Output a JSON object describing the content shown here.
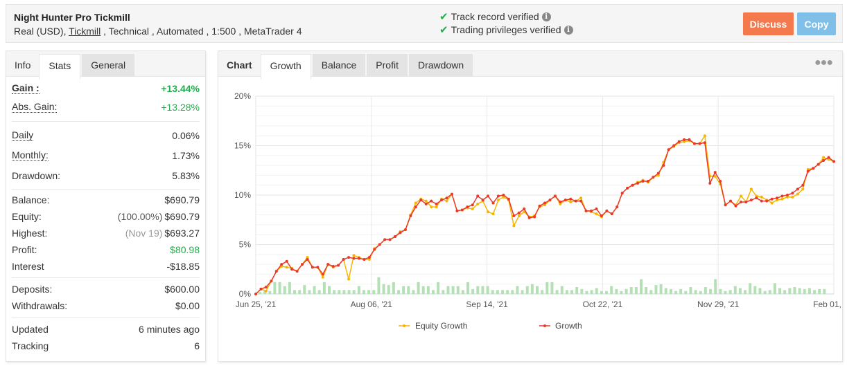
{
  "header": {
    "title": "Night Hunter Pro Tickmill",
    "account_type": "Real (USD), ",
    "broker_link": "Tickmill",
    "details": " , Technical , Automated , 1:500 , MetaTrader 4",
    "verifications": [
      {
        "label": "Track record verified",
        "icon": "check-icon"
      },
      {
        "label": "Trading privileges verified",
        "icon": "check-icon"
      }
    ],
    "discuss_label": "Discuss",
    "copy_label": "Copy",
    "colors": {
      "discuss": "#f47a4d",
      "copy": "#7fbfe8",
      "verified": "#1fae4b"
    }
  },
  "left_panel": {
    "tabs": [
      {
        "label": "Info",
        "state": "label"
      },
      {
        "label": "Stats",
        "state": "active"
      },
      {
        "label": "General",
        "state": "inactive"
      }
    ],
    "gain": {
      "label": "Gain :",
      "value": "+13.44%"
    },
    "abs_gain": {
      "label": "Abs. Gain:",
      "value": "+13.28%"
    },
    "daily": {
      "label": "Daily",
      "value": "0.06%"
    },
    "monthly": {
      "label": "Monthly:",
      "value": "1.73%"
    },
    "drawdown": {
      "label": "Drawdown:",
      "value": "5.83%"
    },
    "balance": {
      "label": "Balance:",
      "value": "$690.79"
    },
    "equity": {
      "label": "Equity:",
      "note": "(100.00%)",
      "value": "$690.79"
    },
    "highest": {
      "label": "Highest:",
      "note": "(Nov 19)",
      "value": "$693.27"
    },
    "profit": {
      "label": "Profit:",
      "value": "$80.98"
    },
    "interest": {
      "label": "Interest",
      "value": "-$18.85"
    },
    "deposits": {
      "label": "Deposits:",
      "value": "$600.00"
    },
    "withdrawals": {
      "label": "Withdrawals:",
      "value": "$0.00"
    },
    "updated": {
      "label": "Updated",
      "value": "6 minutes ago"
    },
    "tracking": {
      "label": "Tracking",
      "value": "6"
    }
  },
  "right_panel": {
    "tabs": [
      {
        "label": "Chart",
        "state": "label"
      },
      {
        "label": "Growth",
        "state": "active"
      },
      {
        "label": "Balance",
        "state": "inactive"
      },
      {
        "label": "Profit",
        "state": "inactive"
      },
      {
        "label": "Drawdown",
        "state": "inactive"
      }
    ],
    "more_icon": "ellipsis-icon"
  },
  "chart_data": {
    "type": "line",
    "title": "",
    "xlabel": "",
    "ylabel": "",
    "ylim": [
      0,
      20
    ],
    "yticks": [
      "0%",
      "5%",
      "10%",
      "15%",
      "20%"
    ],
    "xticks": [
      "Jun 25, '21",
      "Aug 06, '21",
      "Sep 14, '21",
      "Oct 22, '21",
      "Nov 29, '21",
      "Feb 01, '22"
    ],
    "grid": true,
    "legend_position": "bottom",
    "colors": {
      "equity": "#f7b500",
      "growth": "#e8392b",
      "bars": "#b5e0b5"
    },
    "series": [
      {
        "name": "Equity Growth",
        "values": [
          0.0,
          0.5,
          0.3,
          1.3,
          2.3,
          2.8,
          2.7,
          2.6,
          2.3,
          3.0,
          3.7,
          2.7,
          2.7,
          1.7,
          3.0,
          2.7,
          2.9,
          3.5,
          1.5,
          3.9,
          3.7,
          3.5,
          3.5,
          4.6,
          5.0,
          5.5,
          5.5,
          5.8,
          6.3,
          6.5,
          8.0,
          9.2,
          9.6,
          9.4,
          8.8,
          8.8,
          9.6,
          9.4,
          10.1,
          8.4,
          8.5,
          8.7,
          8.6,
          9.1,
          9.4,
          8.3,
          8.1,
          9.5,
          9.8,
          9.5,
          6.9,
          7.9,
          8.3,
          7.8,
          7.9,
          8.8,
          9.0,
          9.5,
          9.9,
          9.1,
          9.5,
          9.3,
          9.4,
          9.7,
          8.4,
          8.3,
          8.1,
          7.8,
          8.4,
          8.1,
          8.8,
          10.2,
          10.7,
          11.0,
          11.3,
          11.5,
          11.3,
          11.8,
          12.0,
          13.3,
          14.6,
          14.9,
          15.3,
          15.4,
          15.5,
          15.2,
          15.2,
          16.0,
          11.9,
          11.9,
          11.1,
          9.0,
          9.4,
          9.0,
          9.9,
          9.3,
          10.6,
          9.9,
          9.8,
          9.5,
          9.2,
          9.5,
          9.6,
          9.8,
          9.8,
          10.1,
          10.6,
          12.6,
          12.7,
          13.1,
          13.8,
          13.6,
          13.4
        ]
      },
      {
        "name": "Growth",
        "values": [
          0.0,
          0.5,
          0.7,
          1.3,
          2.3,
          3.0,
          3.3,
          2.5,
          2.3,
          3.0,
          3.5,
          2.7,
          2.7,
          2.0,
          3.0,
          2.8,
          2.9,
          3.5,
          3.7,
          3.6,
          3.6,
          3.5,
          3.7,
          4.5,
          5.0,
          5.5,
          5.5,
          5.8,
          6.2,
          6.5,
          7.9,
          8.8,
          9.5,
          9.1,
          9.4,
          9.1,
          9.5,
          9.7,
          10.1,
          8.4,
          8.5,
          8.8,
          9.0,
          9.9,
          9.5,
          9.9,
          9.2,
          9.9,
          10.0,
          9.6,
          7.9,
          8.2,
          8.6,
          7.7,
          7.8,
          8.9,
          9.2,
          9.5,
          9.9,
          9.3,
          9.5,
          9.6,
          9.4,
          9.4,
          8.4,
          8.4,
          8.6,
          7.9,
          8.4,
          8.1,
          8.8,
          10.2,
          10.7,
          11.0,
          11.2,
          11.4,
          11.4,
          11.8,
          12.2,
          13.0,
          14.6,
          15.0,
          15.4,
          15.6,
          15.6,
          15.2,
          15.2,
          15.3,
          11.2,
          12.3,
          11.4,
          9.0,
          9.4,
          8.9,
          9.3,
          9.3,
          9.5,
          9.7,
          9.4,
          9.4,
          9.6,
          9.7,
          9.9,
          10.0,
          10.2,
          10.6,
          11.0,
          12.4,
          12.7,
          13.1,
          13.5,
          13.8,
          13.4
        ]
      },
      {
        "name": "Daily Bars",
        "values": [
          0.2,
          0.3,
          0.3,
          1.2,
          1.2,
          0.8,
          1.2,
          0.4,
          0.4,
          0.9,
          0.4,
          0.8,
          0.4,
          1.2,
          0.8,
          0.4,
          0.4,
          0.4,
          0.4,
          0.4,
          0.8,
          0.4,
          0.4,
          0.4,
          1.7,
          1.0,
          0.9,
          1.2,
          0.4,
          0.8,
          0.8,
          0.4,
          1.2,
          0.8,
          0.8,
          0.4,
          1.2,
          0.4,
          0.8,
          0.8,
          0.8,
          0.4,
          1.2,
          0.5,
          0.8,
          0.8,
          0.8,
          0.4,
          0.4,
          0.4,
          0.4,
          0.4,
          0.8,
          0.4,
          0.8,
          1.0,
          0.8,
          0.4,
          1.2,
          1.2,
          0.4,
          0.8,
          0.4,
          0.4,
          0.7,
          0.5,
          0.3,
          0.4,
          0.6,
          0.3,
          0.3,
          0.8,
          0.5,
          0.3,
          0.5,
          0.7,
          0.7,
          1.5,
          0.7,
          0.4,
          0.9,
          1.0,
          0.6,
          0.5,
          0.3,
          0.5,
          0.3,
          0.7,
          0.4,
          0.3,
          0.7,
          0.5,
          1.5,
          0.5,
          0.3,
          0.4,
          0.8,
          0.6,
          0.4,
          1.1,
          0.8,
          0.6,
          0.3,
          0.4,
          1.1,
          0.6,
          0.4,
          0.6,
          0.7,
          0.6,
          0.5,
          0.6,
          0.4,
          0.5,
          0.5
        ]
      }
    ]
  }
}
